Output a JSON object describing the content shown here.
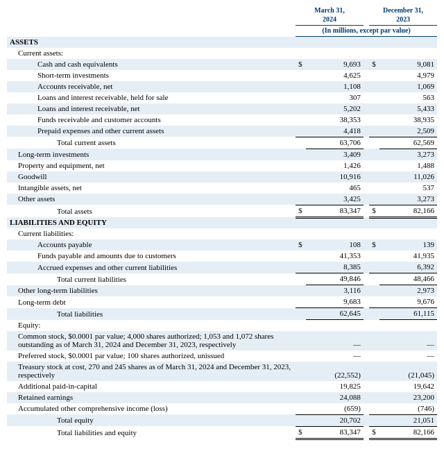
{
  "columns": {
    "col1": {
      "line1": "March 31,",
      "line2": "2024"
    },
    "col2": {
      "line1": "December 31,",
      "line2": "2023"
    },
    "units": "(In millions, except par value)"
  },
  "sections": {
    "assets": "ASSETS",
    "current_assets": "Current assets:",
    "liab_eq": "LIABILITIES AND EQUITY",
    "current_liab": "Current liabilities:",
    "equity": "Equity:"
  },
  "rows": {
    "cash": {
      "label": "Cash and cash equivalents",
      "v1": "9,693",
      "v2": "9,081",
      "sym": "$"
    },
    "sti": {
      "label": "Short-term investments",
      "v1": "4,625",
      "v2": "4,979"
    },
    "ar": {
      "label": "Accounts receivable, net",
      "v1": "1,108",
      "v2": "1,069"
    },
    "lir_hfs": {
      "label": "Loans and interest receivable, held for sale",
      "v1": "307",
      "v2": "563"
    },
    "lir_net": {
      "label": "Loans and interest receivable, net",
      "v1": "5,202",
      "v2": "5,433"
    },
    "funds_recv": {
      "label": "Funds receivable and customer accounts",
      "v1": "38,353",
      "v2": "38,935"
    },
    "prepaid": {
      "label": "Prepaid expenses and other current assets",
      "v1": "4,418",
      "v2": "2,509"
    },
    "tca": {
      "label": "Total current assets",
      "v1": "63,706",
      "v2": "62,569"
    },
    "lti": {
      "label": "Long-term investments",
      "v1": "3,409",
      "v2": "3,273"
    },
    "ppe": {
      "label": "Property and equipment, net",
      "v1": "1,426",
      "v2": "1,488"
    },
    "gw": {
      "label": "Goodwill",
      "v1": "10,916",
      "v2": "11,026"
    },
    "intan": {
      "label": "Intangible assets, net",
      "v1": "465",
      "v2": "537"
    },
    "oa": {
      "label": "Other assets",
      "v1": "3,425",
      "v2": "3,273"
    },
    "ta": {
      "label": "Total assets",
      "v1": "83,347",
      "v2": "82,166",
      "sym": "$"
    },
    "ap": {
      "label": "Accounts payable",
      "v1": "108",
      "v2": "139",
      "sym": "$"
    },
    "funds_pay": {
      "label": "Funds payable and amounts due to customers",
      "v1": "41,353",
      "v2": "41,935"
    },
    "accrued": {
      "label": "Accrued expenses and other current liabilities",
      "v1": "8,385",
      "v2": "6,392"
    },
    "tcl": {
      "label": "Total current liabilities",
      "v1": "49,846",
      "v2": "48,466"
    },
    "oltl": {
      "label": "Other long-term liabilities",
      "v1": "3,116",
      "v2": "2,973"
    },
    "ltd": {
      "label": "Long-term debt",
      "v1": "9,683",
      "v2": "9,676"
    },
    "tl": {
      "label": "Total liabilities",
      "v1": "62,645",
      "v2": "61,115"
    },
    "cs": {
      "label": "Common stock, $0.0001 par value; 4,000 shares authorized; 1,053 and 1,072 shares outstanding as of March 31, 2024 and December 31, 2023, respectively",
      "v1": "—",
      "v2": "—"
    },
    "ps": {
      "label": "Preferred stock, $0.0001 par value; 100 shares authorized, unissued",
      "v1": "—",
      "v2": "—"
    },
    "ts": {
      "label": "Treasury stock at cost, 270 and 245 shares as of March 31, 2024 and December 31, 2023, respectively",
      "v1": "(22,552)",
      "v2": "(21,045)"
    },
    "apic": {
      "label": "Additional paid-in-capital",
      "v1": "19,825",
      "v2": "19,642"
    },
    "re": {
      "label": "Retained earnings",
      "v1": "24,088",
      "v2": "23,200"
    },
    "aoci": {
      "label": "Accumulated other comprehensive income (loss)",
      "v1": "(659)",
      "v2": "(746)"
    },
    "te": {
      "label": "Total equity",
      "v1": "20,702",
      "v2": "21,051"
    },
    "tle": {
      "label": "Total liabilities and equity",
      "v1": "83,347",
      "v2": "82,166",
      "sym": "$"
    }
  }
}
